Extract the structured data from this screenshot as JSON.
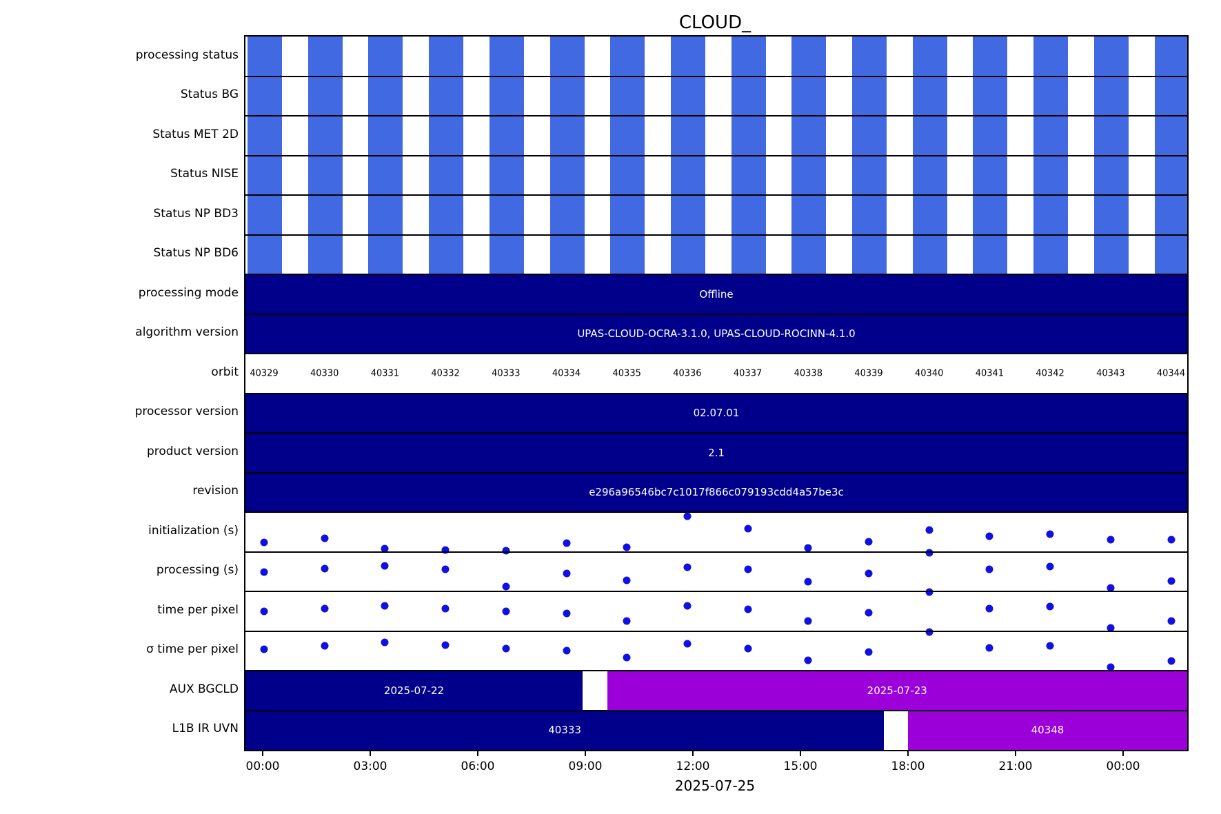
{
  "chart_data": {
    "type": "heatmap",
    "title": "CLOUD_",
    "x_axis": {
      "date_label": "2025-07-25",
      "tick_labels": [
        "00:00",
        "03:00",
        "06:00",
        "09:00",
        "12:00",
        "15:00",
        "18:00",
        "21:00",
        "00:00"
      ]
    },
    "colors": {
      "stripe": "#4169E1",
      "navy": "#00008B",
      "purple": "#9B00D9",
      "dot": "#1010E0",
      "background": "#FFFFFF"
    },
    "orbits": [
      "40329",
      "40330",
      "40331",
      "40332",
      "40333",
      "40334",
      "40335",
      "40336",
      "40337",
      "40338",
      "40339",
      "40340",
      "40341",
      "40342",
      "40343",
      "40344"
    ],
    "rows": [
      {
        "label": "processing status",
        "type": "stripes"
      },
      {
        "label": "Status BG",
        "type": "stripes"
      },
      {
        "label": "Status MET 2D",
        "type": "stripes"
      },
      {
        "label": "Status NISE",
        "type": "stripes"
      },
      {
        "label": "Status NP BD3",
        "type": "stripes"
      },
      {
        "label": "Status NP BD6",
        "type": "stripes"
      },
      {
        "label": "processing mode",
        "type": "bar",
        "segments": [
          {
            "x0": 0,
            "x1": 1,
            "color": "navy",
            "text": "Offline"
          }
        ]
      },
      {
        "label": "algorithm version",
        "type": "bar",
        "segments": [
          {
            "x0": 0,
            "x1": 1,
            "color": "navy",
            "text": "UPAS-CLOUD-OCRA-3.1.0, UPAS-CLOUD-ROCINN-4.1.0"
          }
        ]
      },
      {
        "label": "orbit",
        "type": "orbit-labels"
      },
      {
        "label": "processor version",
        "type": "bar",
        "segments": [
          {
            "x0": 0,
            "x1": 1,
            "color": "navy",
            "text": "02.07.01"
          }
        ]
      },
      {
        "label": "product version",
        "type": "bar",
        "segments": [
          {
            "x0": 0,
            "x1": 1,
            "color": "navy",
            "text": "2.1"
          }
        ]
      },
      {
        "label": "revision",
        "type": "bar",
        "segments": [
          {
            "x0": 0,
            "x1": 1,
            "color": "navy",
            "text": "e296a96546bc7c1017f866c079193cdd4a57be3c"
          }
        ]
      },
      {
        "label": "initialization (s)",
        "type": "scatter",
        "values": [
          0.23,
          0.34,
          0.08,
          0.05,
          0.03,
          0.22,
          0.12,
          0.9,
          0.58,
          0.1,
          0.25,
          0.55,
          0.4,
          0.45,
          0.3,
          0.3
        ]
      },
      {
        "label": "processing (s)",
        "type": "scatter",
        "values": [
          0.49,
          0.57,
          0.64,
          0.56,
          0.12,
          0.45,
          0.28,
          0.61,
          0.55,
          0.25,
          0.45,
          0.98,
          0.55,
          0.62,
          0.08,
          0.26
        ]
      },
      {
        "label": "time per pixel",
        "type": "scatter",
        "values": [
          0.5,
          0.56,
          0.64,
          0.57,
          0.49,
          0.45,
          0.26,
          0.63,
          0.55,
          0.25,
          0.46,
          0.98,
          0.56,
          0.62,
          0.08,
          0.26
        ]
      },
      {
        "label": "σ time per pixel",
        "type": "scatter",
        "values": [
          0.54,
          0.63,
          0.71,
          0.64,
          0.56,
          0.5,
          0.33,
          0.68,
          0.56,
          0.26,
          0.47,
          0.98,
          0.57,
          0.63,
          0.08,
          0.25
        ]
      },
      {
        "label": "AUX BGCLD",
        "type": "bar",
        "segments": [
          {
            "x0": 0,
            "x1": 0.358,
            "color": "navy",
            "text": "2025-07-22"
          },
          {
            "x0": 0.384,
            "x1": 1,
            "color": "purple",
            "text": "2025-07-23"
          }
        ]
      },
      {
        "label": "L1B IR UVN",
        "type": "bar",
        "segments": [
          {
            "x0": 0,
            "x1": 0.678,
            "color": "navy",
            "text": "40333"
          },
          {
            "x0": 0.7035,
            "x1": 1,
            "color": "purple",
            "text": "40348"
          }
        ]
      }
    ]
  }
}
